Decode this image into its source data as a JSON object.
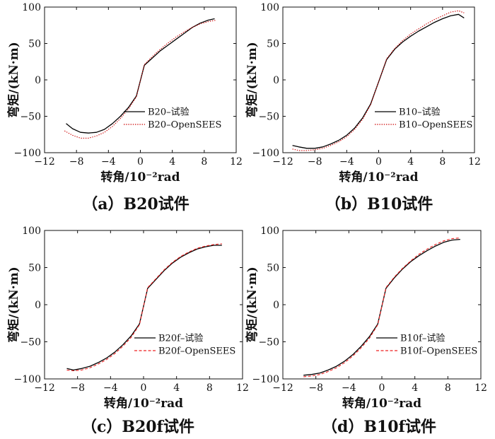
{
  "figure": {
    "colors": {
      "test": "#000000",
      "sim_a": "#cc0000",
      "sim_b": "#ee2222",
      "axis": "#111111"
    }
  },
  "chart_data": [
    {
      "type": "line",
      "panel": "a",
      "caption": "（a）B20试件",
      "xlabel": "转角/10⁻²rad",
      "ylabel": "弯矩/(kN·m)",
      "xlim": [
        -12,
        12
      ],
      "ylim": [
        -100,
        100
      ],
      "xticks": [
        "−12",
        "−8",
        "−4",
        "0",
        "4",
        "8",
        "12"
      ],
      "yticks": [
        "100",
        "50",
        "0",
        "−50",
        "−100"
      ],
      "series": [
        {
          "name": "B20–试验",
          "style": "solid",
          "color": "#000000",
          "x": [
            -9.3,
            -8.5,
            -7.5,
            -6.5,
            -5.5,
            -4.5,
            -3.5,
            -2.5,
            -1.5,
            -0.5,
            0.5,
            1.5,
            2.5,
            3.5,
            4.5,
            5.5,
            6.5,
            7.5,
            8.5,
            9.3
          ],
          "y": [
            -60,
            -67,
            -72,
            -73,
            -72,
            -68,
            -60,
            -50,
            -38,
            -22,
            20,
            30,
            40,
            48,
            56,
            64,
            72,
            78,
            82,
            84
          ]
        },
        {
          "name": "B20–OpenSEES",
          "style": "dotted",
          "color": "#cc0000",
          "x": [
            -9.5,
            -8.5,
            -7.5,
            -6.5,
            -5.5,
            -4.5,
            -3.5,
            -2.5,
            -1.5,
            -0.5,
            0.5,
            1.5,
            2.5,
            3.5,
            4.5,
            5.5,
            6.5,
            7.5,
            8.5,
            9.5
          ],
          "y": [
            -70,
            -76,
            -80,
            -80,
            -77,
            -72,
            -64,
            -53,
            -40,
            -23,
            21,
            32,
            42,
            51,
            59,
            66,
            72,
            77,
            80,
            82
          ]
        }
      ]
    },
    {
      "type": "line",
      "panel": "b",
      "caption": "（b）B10试件",
      "xlabel": "转角/10⁻²rad",
      "ylabel": "弯矩/(kN·m)",
      "xlim": [
        -12,
        12
      ],
      "ylim": [
        -100,
        100
      ],
      "xticks": [
        "−12",
        "−8",
        "−4",
        "0",
        "4",
        "8",
        "12"
      ],
      "yticks": [
        "100",
        "50",
        "0",
        "−50",
        "−100"
      ],
      "series": [
        {
          "name": "B10–试验",
          "style": "solid",
          "color": "#000000",
          "x": [
            -10.8,
            -10,
            -9,
            -8,
            -7,
            -6,
            -5,
            -4,
            -3,
            -2,
            -1,
            1,
            2,
            3,
            4,
            5,
            6,
            7,
            8,
            9,
            10,
            10.7
          ],
          "y": [
            -90,
            -92,
            -94,
            -94,
            -92,
            -88,
            -83,
            -76,
            -66,
            -52,
            -33,
            28,
            42,
            52,
            60,
            67,
            73,
            79,
            84,
            88,
            90,
            85
          ]
        },
        {
          "name": "B10–OpenSEES",
          "style": "dotted",
          "color": "#cc0000",
          "x": [
            -10.8,
            -10,
            -9,
            -8,
            -7,
            -6,
            -5,
            -4,
            -3,
            -2,
            -1,
            1,
            2,
            3,
            4,
            5,
            6,
            7,
            8,
            9,
            10,
            10.7
          ],
          "y": [
            -95,
            -97,
            -97,
            -96,
            -94,
            -90,
            -85,
            -78,
            -68,
            -54,
            -34,
            29,
            43,
            54,
            63,
            70,
            77,
            83,
            88,
            93,
            95,
            92
          ]
        }
      ]
    },
    {
      "type": "line",
      "panel": "c",
      "caption": "（c）B20f试件",
      "xlabel": "转角/10⁻²rad",
      "ylabel": "弯矩/(kN·m)",
      "xlim": [
        -12,
        12
      ],
      "ylim": [
        -100,
        100
      ],
      "xticks": [
        "−12",
        "−8",
        "−4",
        "0",
        "4",
        "8",
        "12"
      ],
      "yticks": [
        "100",
        "50",
        "0",
        "−50",
        "−100"
      ],
      "series": [
        {
          "name": "B20f–试验",
          "style": "solid",
          "color": "#000000",
          "x": [
            -9.3,
            -8.5,
            -7.5,
            -6.5,
            -5.5,
            -4.5,
            -3.5,
            -2.5,
            -1.5,
            -0.5,
            0.5,
            1.5,
            2.5,
            3.5,
            4.5,
            5.5,
            6.5,
            7.5,
            8.5,
            9.5
          ],
          "y": [
            -86,
            -88,
            -86,
            -83,
            -78,
            -72,
            -64,
            -54,
            -42,
            -26,
            22,
            34,
            46,
            56,
            64,
            70,
            75,
            78,
            80,
            80
          ]
        },
        {
          "name": "B20f–OpenSEES",
          "style": "dashed",
          "color": "#ee2222",
          "x": [
            -9.3,
            -8.5,
            -7.5,
            -6.5,
            -5.5,
            -4.5,
            -3.5,
            -2.5,
            -1.5,
            -0.5,
            0.5,
            1.5,
            2.5,
            3.5,
            4.5,
            5.5,
            6.5,
            7.5,
            8.5,
            9.5
          ],
          "y": [
            -88,
            -89,
            -88,
            -85,
            -80,
            -74,
            -66,
            -56,
            -44,
            -27,
            23,
            35,
            47,
            57,
            65,
            71,
            76,
            79,
            81,
            82
          ]
        }
      ]
    },
    {
      "type": "line",
      "panel": "d",
      "caption": "（d）B10f试件",
      "xlabel": "转角/10⁻²rad",
      "ylabel": "弯矩/(kN·m)",
      "xlim": [
        -12,
        12
      ],
      "ylim": [
        -100,
        100
      ],
      "xticks": [
        "−12",
        "−8",
        "−4",
        "0",
        "4",
        "8",
        "12"
      ],
      "yticks": [
        "100",
        "50",
        "0",
        "−50",
        "−100"
      ],
      "series": [
        {
          "name": "B10f–试验",
          "style": "solid",
          "color": "#000000",
          "x": [
            -9.5,
            -8.5,
            -7.5,
            -6.5,
            -5.5,
            -4.5,
            -3.5,
            -2.5,
            -1.5,
            -0.5,
            0.5,
            1.5,
            2.5,
            3.5,
            4.5,
            5.5,
            6.5,
            7.5,
            8.5,
            9.5
          ],
          "y": [
            -95,
            -94,
            -92,
            -88,
            -83,
            -76,
            -67,
            -56,
            -43,
            -26,
            22,
            36,
            48,
            58,
            66,
            73,
            79,
            84,
            87,
            88
          ]
        },
        {
          "name": "B10f–OpenSEES",
          "style": "dashed",
          "color": "#ee2222",
          "x": [
            -9.5,
            -8.5,
            -7.5,
            -6.5,
            -5.5,
            -4.5,
            -3.5,
            -2.5,
            -1.5,
            -0.5,
            0.5,
            1.5,
            2.5,
            3.5,
            4.5,
            5.5,
            6.5,
            7.5,
            8.5,
            9.5
          ],
          "y": [
            -97,
            -96,
            -94,
            -90,
            -85,
            -78,
            -69,
            -58,
            -45,
            -27,
            23,
            37,
            49,
            59,
            68,
            75,
            81,
            86,
            89,
            90
          ]
        }
      ]
    }
  ]
}
